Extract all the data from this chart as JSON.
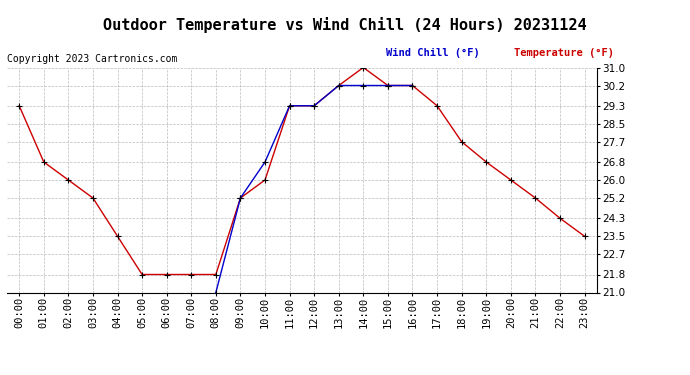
{
  "title": "Outdoor Temperature vs Wind Chill (24 Hours) 20231124",
  "copyright_text": "Copyright 2023 Cartronics.com",
  "legend_wind_chill": "Wind Chill (°F)",
  "legend_temperature": "Temperature (°F)",
  "hours": [
    0,
    1,
    2,
    3,
    4,
    5,
    6,
    7,
    8,
    9,
    10,
    11,
    12,
    13,
    14,
    15,
    16,
    17,
    18,
    19,
    20,
    21,
    22,
    23
  ],
  "temperature": [
    29.3,
    26.8,
    26.0,
    25.2,
    23.5,
    21.8,
    21.8,
    21.8,
    21.8,
    25.2,
    26.0,
    29.3,
    29.3,
    30.2,
    31.0,
    30.2,
    30.2,
    29.3,
    27.7,
    26.8,
    26.0,
    25.2,
    24.3,
    23.5
  ],
  "wind_chill": [
    null,
    null,
    null,
    null,
    null,
    null,
    null,
    null,
    21.0,
    25.2,
    26.8,
    29.3,
    29.3,
    30.2,
    30.2,
    30.2,
    30.2,
    null,
    null,
    null,
    null,
    null,
    null,
    null
  ],
  "temp_color": "#cc0000",
  "wind_chill_color": "#0000cc",
  "marker_color": "#000000",
  "background_color": "#ffffff",
  "grid_color": "#bbbbbb",
  "ylim": [
    21.0,
    31.0
  ],
  "yticks": [
    21.0,
    21.8,
    22.7,
    23.5,
    24.3,
    25.2,
    26.0,
    26.8,
    27.7,
    28.5,
    29.3,
    30.2,
    31.0
  ],
  "title_fontsize": 11,
  "label_fontsize": 7.5,
  "copyright_fontsize": 7,
  "legend_fontsize": 7.5
}
